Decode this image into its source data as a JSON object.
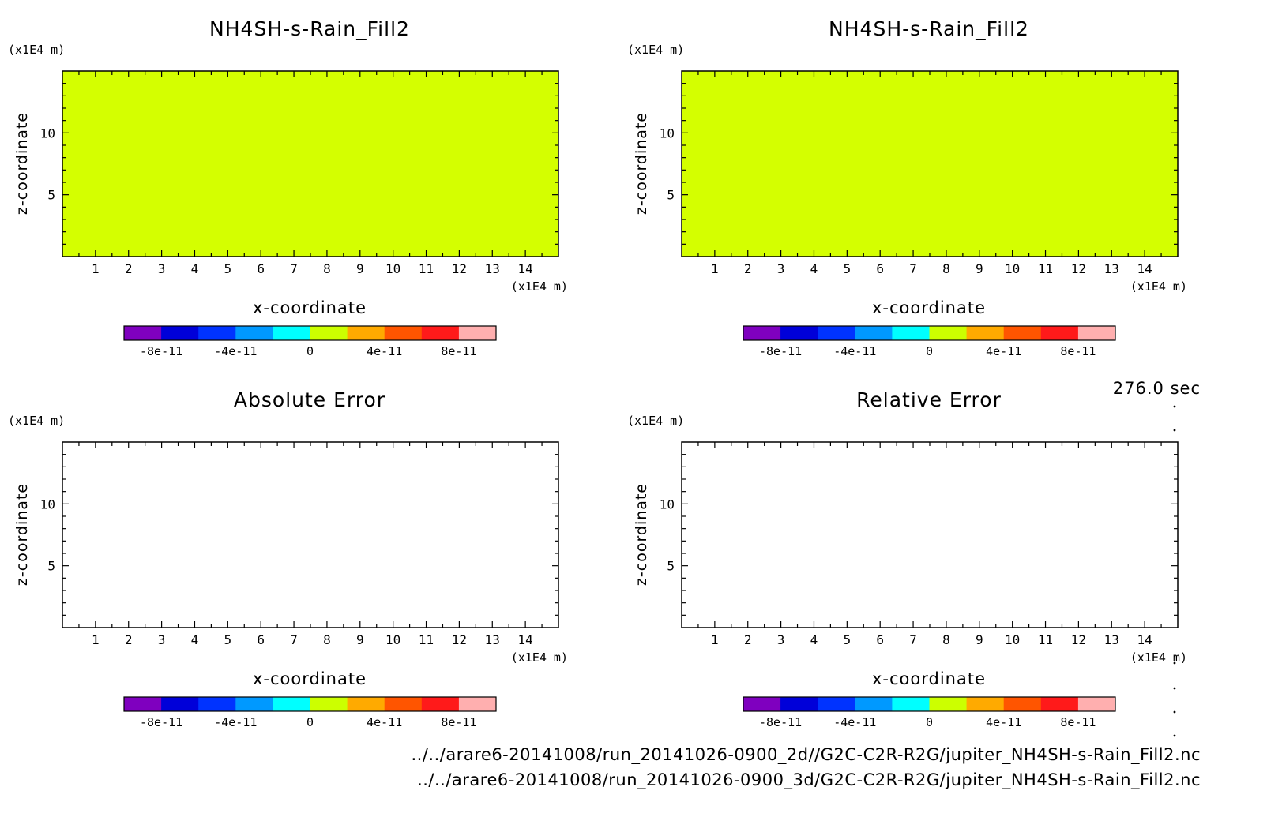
{
  "time_label": "276.0 sec",
  "file_paths": [
    "../../arare6-20141008/run_20141026-0900_2d//G2C-C2R-R2G/jupiter_NH4SH-s-Rain_Fill2.nc",
    "../../arare6-20141008/run_20141026-0900_3d/G2C-C2R-R2G/jupiter_NH4SH-s-Rain_Fill2.nc"
  ],
  "colors": {
    "field_fill": "#d4ff00",
    "colorbar": [
      "#7f00bf",
      "#0000d9",
      "#0033ff",
      "#0099ff",
      "#00ffff",
      "#ccff00",
      "#ffaa00",
      "#ff5500",
      "#ff1a1a",
      "#ffafaf"
    ]
  },
  "chart_data": [
    {
      "type": "heatmap",
      "title": "NH4SH-s-Rain_Fill2",
      "xlabel": "x-coordinate",
      "ylabel": "z-coordinate",
      "x_unit": "(x1E4 m)",
      "y_unit": "(x1E4 m)",
      "xlim": [
        0,
        15
      ],
      "ylim": [
        0,
        15
      ],
      "x_ticks": [
        "1",
        "2",
        "3",
        "4",
        "5",
        "6",
        "7",
        "8",
        "9",
        "10",
        "11",
        "12",
        "13",
        "14"
      ],
      "y_ticks": [
        "5",
        "10"
      ],
      "fill": "uniform",
      "colorbar_ticks": [
        "-8e-11",
        "-4e-11",
        "0",
        "4e-11",
        "8e-11"
      ]
    },
    {
      "type": "heatmap",
      "title": "NH4SH-s-Rain_Fill2",
      "xlabel": "x-coordinate",
      "ylabel": "z-coordinate",
      "x_unit": "(x1E4 m)",
      "y_unit": "(x1E4 m)",
      "xlim": [
        0,
        15
      ],
      "ylim": [
        0,
        15
      ],
      "x_ticks": [
        "1",
        "2",
        "3",
        "4",
        "5",
        "6",
        "7",
        "8",
        "9",
        "10",
        "11",
        "12",
        "13",
        "14"
      ],
      "y_ticks": [
        "5",
        "10"
      ],
      "fill": "uniform",
      "colorbar_ticks": [
        "-8e-11",
        "-4e-11",
        "0",
        "4e-11",
        "8e-11"
      ]
    },
    {
      "type": "heatmap",
      "title": "Absolute Error",
      "xlabel": "x-coordinate",
      "ylabel": "z-coordinate",
      "x_unit": "(x1E4 m)",
      "y_unit": "(x1E4 m)",
      "xlim": [
        0,
        15
      ],
      "ylim": [
        0,
        15
      ],
      "x_ticks": [
        "1",
        "2",
        "3",
        "4",
        "5",
        "6",
        "7",
        "8",
        "9",
        "10",
        "11",
        "12",
        "13",
        "14"
      ],
      "y_ticks": [
        "5",
        "10"
      ],
      "fill": "empty",
      "colorbar_ticks": [
        "-8e-11",
        "-4e-11",
        "0",
        "4e-11",
        "8e-11"
      ]
    },
    {
      "type": "heatmap",
      "title": "Relative Error",
      "xlabel": "x-coordinate",
      "ylabel": "z-coordinate",
      "x_unit": "(x1E4 m)",
      "y_unit": "(x1E4 m)",
      "xlim": [
        0,
        15
      ],
      "ylim": [
        0,
        15
      ],
      "x_ticks": [
        "1",
        "2",
        "3",
        "4",
        "5",
        "6",
        "7",
        "8",
        "9",
        "10",
        "11",
        "12",
        "13",
        "14"
      ],
      "y_ticks": [
        "5",
        "10"
      ],
      "fill": "empty",
      "colorbar_ticks": [
        "-8e-11",
        "-4e-11",
        "0",
        "4e-11",
        "8e-11"
      ]
    }
  ]
}
